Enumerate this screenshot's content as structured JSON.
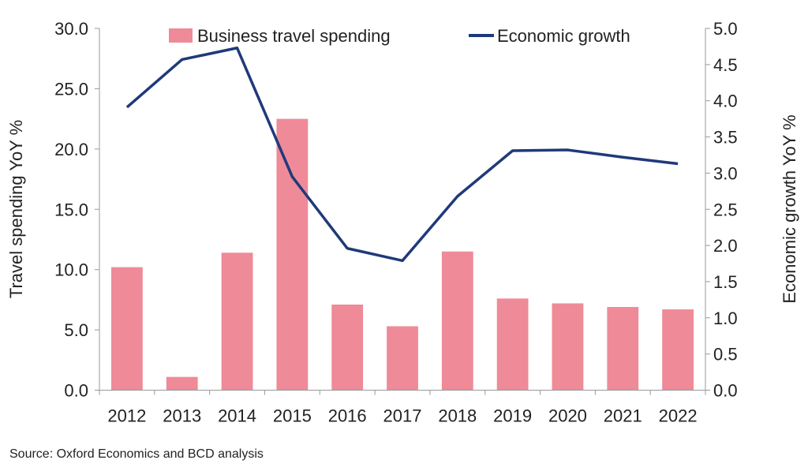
{
  "chart_data": {
    "type": "bar+line",
    "categories": [
      "2012",
      "2013",
      "2014",
      "2015",
      "2016",
      "2017",
      "2018",
      "2019",
      "2020",
      "2021",
      "2022"
    ],
    "series": [
      {
        "name": "Business travel spending",
        "type": "bar",
        "axis": "left",
        "color": "#EF8A98",
        "values": [
          10.2,
          1.1,
          11.4,
          22.5,
          7.1,
          5.3,
          11.5,
          7.6,
          7.2,
          6.9,
          6.7
        ]
      },
      {
        "name": "Economic growth",
        "type": "line",
        "axis": "right",
        "color": "#1F3A7A",
        "values": [
          3.91,
          4.57,
          4.73,
          2.95,
          1.96,
          1.79,
          2.68,
          3.31,
          3.32,
          3.22,
          3.13
        ]
      }
    ],
    "ylabel": "Travel spending YoY %",
    "y2label": "Economic growth YoY %",
    "ylim": [
      0,
      30
    ],
    "y2lim": [
      0,
      5
    ],
    "yticks": [
      "0.0",
      "5.0",
      "10.0",
      "15.0",
      "20.0",
      "25.0",
      "30.0"
    ],
    "y2ticks": [
      "0.0",
      "0.5",
      "1.0",
      "1.5",
      "2.0",
      "2.5",
      "3.0",
      "3.5",
      "4.0",
      "4.5",
      "5.0"
    ],
    "legend_placement": "top"
  },
  "source": "Source: Oxford Economics and BCD analysis"
}
